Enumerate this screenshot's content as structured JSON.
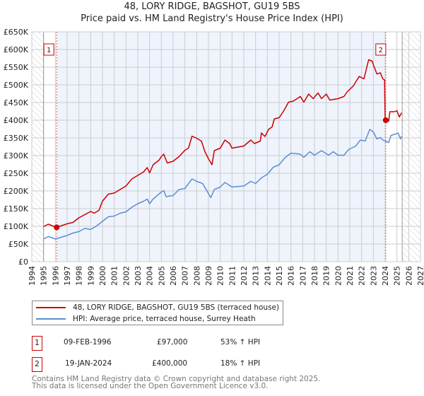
{
  "title": "48, LORY RIDGE, BAGSHOT, GU19 5BS",
  "subtitle": "Price paid vs. HM Land Registry's House Price Index (HPI)",
  "chart_data": {
    "type": "line",
    "title": "48, LORY RIDGE, BAGSHOT, GU19 5BS — Price paid vs. HM Land Registry's House Price Index (HPI)",
    "xlabel": "",
    "ylabel": "",
    "xlim": [
      1994,
      2027
    ],
    "ylim": [
      0,
      650000
    ],
    "grid": true,
    "legend_position": "bottom",
    "x_ticks": [
      "1994",
      "1995",
      "1996",
      "1997",
      "1998",
      "1999",
      "2000",
      "2001",
      "2002",
      "2003",
      "2004",
      "2005",
      "2006",
      "2007",
      "2008",
      "2009",
      "2010",
      "2011",
      "2012",
      "2013",
      "2014",
      "2015",
      "2016",
      "2017",
      "2018",
      "2019",
      "2020",
      "2021",
      "2022",
      "2023",
      "2024",
      "2025",
      "2026",
      "2027"
    ],
    "y_ticks": [
      "£0",
      "£50K",
      "£100K",
      "£150K",
      "£200K",
      "£250K",
      "£300K",
      "£350K",
      "£400K",
      "£450K",
      "£500K",
      "£550K",
      "£600K",
      "£650K"
    ],
    "colors": {
      "property": "#cc0000",
      "hpi": "#5b8fd0",
      "shade": "#eef3fc",
      "marker_line": "#e06060"
    },
    "series": [
      {
        "name": "48, LORY RIDGE, BAGSHOT, GU19 5BS (terraced house)",
        "color": "#cc0000",
        "points": [
          [
            1995,
            99
          ],
          [
            1995.4,
            106
          ],
          [
            1995.7,
            102
          ],
          [
            1996.1,
            97
          ],
          [
            1997,
            107
          ],
          [
            1997.5,
            111
          ],
          [
            1998,
            124
          ],
          [
            1998.5,
            133
          ],
          [
            1999,
            142
          ],
          [
            1999.3,
            137
          ],
          [
            1999.7,
            145
          ],
          [
            2000,
            171
          ],
          [
            2000.5,
            191
          ],
          [
            2001,
            194
          ],
          [
            2001.5,
            204
          ],
          [
            2002,
            214
          ],
          [
            2002.5,
            234
          ],
          [
            2003,
            244
          ],
          [
            2003.5,
            254
          ],
          [
            2003.8,
            266
          ],
          [
            2004,
            251
          ],
          [
            2004.3,
            274
          ],
          [
            2004.8,
            287
          ],
          [
            2005,
            297
          ],
          [
            2005.2,
            304
          ],
          [
            2005.5,
            279
          ],
          [
            2006,
            284
          ],
          [
            2006.5,
            297
          ],
          [
            2007,
            315
          ],
          [
            2007.3,
            321
          ],
          [
            2007.6,
            355
          ],
          [
            2008,
            349
          ],
          [
            2008.4,
            341
          ],
          [
            2008.7,
            311
          ],
          [
            2009,
            291
          ],
          [
            2009.3,
            274
          ],
          [
            2009.5,
            314
          ],
          [
            2010,
            321
          ],
          [
            2010.4,
            344
          ],
          [
            2010.8,
            334
          ],
          [
            2011,
            321
          ],
          [
            2012,
            327
          ],
          [
            2012.6,
            344
          ],
          [
            2012.9,
            334
          ],
          [
            2013.4,
            341
          ],
          [
            2013.5,
            364
          ],
          [
            2013.8,
            354
          ],
          [
            2014.1,
            374
          ],
          [
            2014.4,
            381
          ],
          [
            2014.6,
            404
          ],
          [
            2015,
            407
          ],
          [
            2015.4,
            427
          ],
          [
            2015.8,
            451
          ],
          [
            2016.2,
            454
          ],
          [
            2016.8,
            467
          ],
          [
            2017.1,
            451
          ],
          [
            2017.5,
            474
          ],
          [
            2017.9,
            461
          ],
          [
            2018.3,
            477
          ],
          [
            2018.6,
            461
          ],
          [
            2019,
            474
          ],
          [
            2019.3,
            457
          ],
          [
            2020,
            461
          ],
          [
            2020.5,
            467
          ],
          [
            2020.8,
            481
          ],
          [
            2021.3,
            497
          ],
          [
            2021.8,
            524
          ],
          [
            2022.2,
            517
          ],
          [
            2022.6,
            571
          ],
          [
            2022.9,
            567
          ],
          [
            2023,
            557
          ],
          [
            2023.3,
            531
          ],
          [
            2023.6,
            534
          ],
          [
            2023.8,
            517
          ],
          [
            2023.95,
            514
          ],
          [
            2024.0,
            404
          ],
          [
            2024.05,
            400
          ],
          [
            2024.3,
            397
          ],
          [
            2024.4,
            424
          ],
          [
            2024.8,
            424
          ],
          [
            2025,
            427
          ],
          [
            2025.2,
            409
          ],
          [
            2025.4,
            421
          ]
        ]
      },
      {
        "name": "HPI: Average price, terraced house, Surrey Heath",
        "color": "#5b8fd0",
        "points": [
          [
            1995,
            64
          ],
          [
            1995.4,
            71
          ],
          [
            1996,
            64
          ],
          [
            1996.5,
            69
          ],
          [
            1997,
            74
          ],
          [
            1997.5,
            81
          ],
          [
            1998,
            85
          ],
          [
            1998.5,
            94
          ],
          [
            1999,
            91
          ],
          [
            1999.5,
            101
          ],
          [
            2000,
            114
          ],
          [
            2000.5,
            127
          ],
          [
            2001,
            129
          ],
          [
            2001.5,
            137
          ],
          [
            2002,
            141
          ],
          [
            2002.5,
            154
          ],
          [
            2003,
            164
          ],
          [
            2003.5,
            171
          ],
          [
            2003.8,
            177
          ],
          [
            2004,
            164
          ],
          [
            2004.3,
            177
          ],
          [
            2005,
            197
          ],
          [
            2005.2,
            201
          ],
          [
            2005.4,
            184
          ],
          [
            2006,
            187
          ],
          [
            2006.5,
            204
          ],
          [
            2007,
            207
          ],
          [
            2007.6,
            234
          ],
          [
            2008,
            227
          ],
          [
            2008.5,
            221
          ],
          [
            2008.8,
            204
          ],
          [
            2009.2,
            181
          ],
          [
            2009.5,
            204
          ],
          [
            2010,
            211
          ],
          [
            2010.4,
            224
          ],
          [
            2011,
            211
          ],
          [
            2012,
            214
          ],
          [
            2012.6,
            227
          ],
          [
            2013,
            221
          ],
          [
            2013.5,
            237
          ],
          [
            2014,
            247
          ],
          [
            2014.5,
            267
          ],
          [
            2015,
            274
          ],
          [
            2015.5,
            294
          ],
          [
            2016,
            307
          ],
          [
            2016.8,
            304
          ],
          [
            2017.1,
            295
          ],
          [
            2017.6,
            311
          ],
          [
            2018,
            301
          ],
          [
            2018.6,
            314
          ],
          [
            2019.2,
            301
          ],
          [
            2019.6,
            311
          ],
          [
            2020,
            301
          ],
          [
            2020.5,
            301
          ],
          [
            2020.9,
            317
          ],
          [
            2021.5,
            327
          ],
          [
            2021.9,
            344
          ],
          [
            2022.3,
            341
          ],
          [
            2022.7,
            374
          ],
          [
            2023,
            367
          ],
          [
            2023.3,
            347
          ],
          [
            2023.6,
            351
          ],
          [
            2023.8,
            344
          ],
          [
            2024,
            341
          ],
          [
            2024.3,
            337
          ],
          [
            2024.5,
            357
          ],
          [
            2024.9,
            361
          ],
          [
            2025.1,
            364
          ],
          [
            2025.3,
            347
          ],
          [
            2025.4,
            355
          ]
        ]
      }
    ],
    "y_units": "thousands GBP",
    "annotations": [
      {
        "label": "1",
        "x": 1996.11,
        "y": 97
      },
      {
        "label": "2",
        "x": 2024.05,
        "y": 400
      }
    ],
    "forecast_hatch_start": 2025.45,
    "data_start": 1995
  },
  "legend": {
    "property_label": "48, LORY RIDGE, BAGSHOT, GU19 5BS (terraced house)",
    "hpi_label": "HPI: Average price, terraced house, Surrey Heath"
  },
  "transactions": [
    {
      "num": "1",
      "date": "09-FEB-1996",
      "price": "£97,000",
      "hpi": "53% ↑ HPI"
    },
    {
      "num": "2",
      "date": "19-JAN-2024",
      "price": "£400,000",
      "hpi": "18% ↑ HPI"
    }
  ],
  "footer": {
    "line1": "Contains HM Land Registry data © Crown copyright and database right 2025.",
    "line2": "This data is licensed under the Open Government Licence v3.0."
  }
}
